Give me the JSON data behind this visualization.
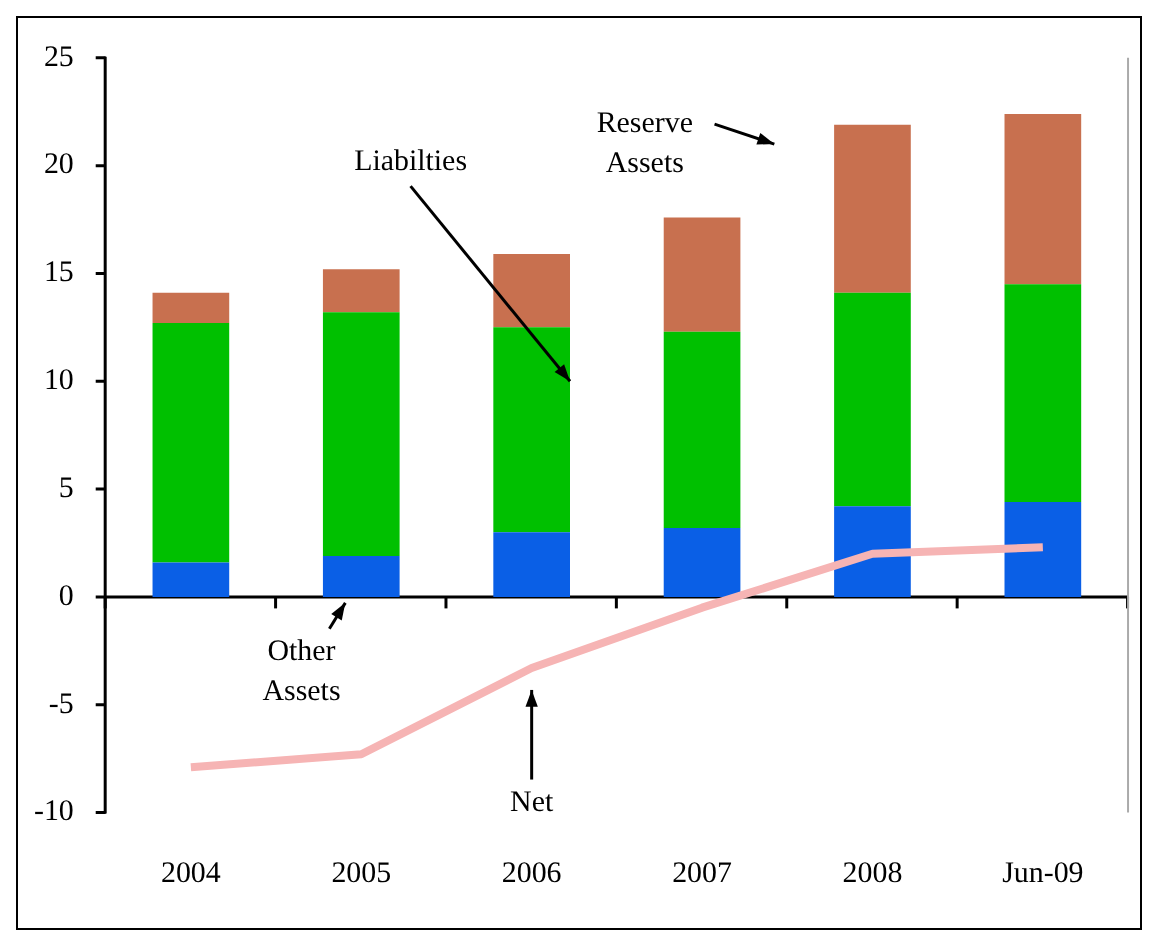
{
  "chart_data": {
    "type": "bar",
    "stacked": true,
    "categories": [
      "2004",
      "2005",
      "2006",
      "2007",
      "2008",
      "Jun-09"
    ],
    "series": [
      {
        "name": "Other Assets",
        "color": "#0a5fe6",
        "values": [
          1.6,
          1.9,
          3.0,
          3.2,
          4.2,
          4.4
        ]
      },
      {
        "name": "Liabilties",
        "color": "#00c000",
        "values": [
          11.1,
          11.3,
          9.5,
          9.1,
          9.9,
          10.1
        ]
      },
      {
        "name": "Reserve Assets",
        "color": "#c8704f",
        "values": [
          1.4,
          2.0,
          3.4,
          5.3,
          7.8,
          7.9
        ]
      },
      {
        "name": "Net",
        "type": "line",
        "color": "#f6b4b4",
        "values": [
          -7.9,
          -7.3,
          -3.3,
          -0.5,
          2.0,
          2.3
        ]
      }
    ],
    "ref_lines": [
      {
        "axis": "y",
        "value": 0,
        "color": "#000000"
      }
    ],
    "ylim": [
      -10,
      25
    ],
    "yticks": [
      -10,
      -5,
      0,
      5,
      10,
      15,
      20,
      25
    ],
    "grid": false,
    "legend": false
  }
}
